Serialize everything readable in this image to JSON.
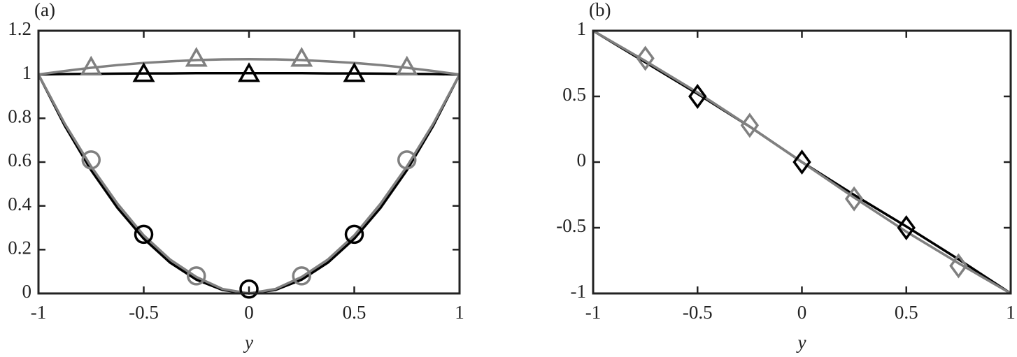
{
  "chart_data": [
    {
      "type": "line",
      "label": "(a)",
      "x_label": "y",
      "xlim": [
        -1,
        1
      ],
      "ylim": [
        0,
        1.2
      ],
      "xticks": [
        -1,
        -0.5,
        0,
        0.5,
        1
      ],
      "yticks": [
        0,
        0.2,
        0.4,
        0.6,
        0.8,
        1,
        1.2
      ],
      "series": [
        {
          "style": "line",
          "color": "#000000",
          "x": [
            -1,
            -0.875,
            -0.75,
            -0.625,
            -0.5,
            -0.375,
            -0.25,
            -0.125,
            0,
            0.125,
            0.25,
            0.375,
            0.5,
            0.625,
            0.75,
            0.875,
            1
          ],
          "values": [
            1,
            0.766,
            0.563,
            0.391,
            0.25,
            0.141,
            0.063,
            0.016,
            0,
            0.016,
            0.063,
            0.141,
            0.25,
            0.391,
            0.563,
            0.766,
            1
          ]
        },
        {
          "style": "line",
          "color": "#000000",
          "x": [
            -1,
            -0.875,
            -0.75,
            -0.625,
            -0.5,
            -0.375,
            -0.25,
            -0.125,
            0,
            0.125,
            0.25,
            0.375,
            0.5,
            0.625,
            0.75,
            0.875,
            1
          ],
          "values": [
            1,
            1.002,
            1.003,
            1.004,
            1.005,
            1.005,
            1.006,
            1.006,
            1.006,
            1.006,
            1.006,
            1.005,
            1.005,
            1.004,
            1.003,
            1.002,
            1
          ]
        },
        {
          "style": "line",
          "color": "#808080",
          "x": [
            -1,
            -0.875,
            -0.75,
            -0.625,
            -0.5,
            -0.375,
            -0.25,
            -0.125,
            0,
            0.125,
            0.25,
            0.375,
            0.5,
            0.625,
            0.75,
            0.875,
            1
          ],
          "values": [
            1,
            0.775,
            0.58,
            0.41,
            0.265,
            0.155,
            0.075,
            0.02,
            0,
            0.02,
            0.075,
            0.155,
            0.265,
            0.41,
            0.58,
            0.775,
            1
          ]
        },
        {
          "style": "line",
          "color": "#808080",
          "x": [
            -1,
            -0.875,
            -0.75,
            -0.625,
            -0.5,
            -0.375,
            -0.25,
            -0.125,
            0,
            0.125,
            0.25,
            0.375,
            0.5,
            0.625,
            0.75,
            0.875,
            1
          ],
          "values": [
            1,
            1.016,
            1.031,
            1.043,
            1.053,
            1.06,
            1.066,
            1.069,
            1.07,
            1.069,
            1.066,
            1.06,
            1.053,
            1.043,
            1.031,
            1.016,
            1
          ]
        },
        {
          "style": "markers",
          "marker": "triangle",
          "color": "#000000",
          "x": [
            -0.5,
            0,
            0.5
          ],
          "values": [
            1.0,
            1.0,
            1.0
          ]
        },
        {
          "style": "markers",
          "marker": "circle",
          "color": "#000000",
          "x": [
            -0.5,
            0,
            0.5
          ],
          "values": [
            0.27,
            0.02,
            0.27
          ]
        },
        {
          "style": "markers",
          "marker": "triangle",
          "color": "#808080",
          "x": [
            -0.75,
            -0.25,
            0.25,
            0.75
          ],
          "values": [
            1.03,
            1.07,
            1.07,
            1.03
          ]
        },
        {
          "style": "markers",
          "marker": "circle",
          "color": "#808080",
          "x": [
            -0.75,
            -0.25,
            0.25,
            0.75
          ],
          "values": [
            0.61,
            0.08,
            0.08,
            0.61
          ]
        }
      ]
    },
    {
      "type": "line",
      "label": "(b)",
      "x_label": "y",
      "xlim": [
        -1,
        1
      ],
      "ylim": [
        -1,
        1
      ],
      "xticks": [
        -1,
        -0.5,
        0,
        0.5,
        1
      ],
      "yticks": [
        -1,
        -0.5,
        0,
        0.5,
        1
      ],
      "series": [
        {
          "style": "line",
          "color": "#000000",
          "x": [
            -1,
            -0.75,
            -0.5,
            -0.25,
            0,
            0.25,
            0.5,
            0.75,
            1
          ],
          "values": [
            1,
            0.76,
            0.52,
            0.27,
            0,
            -0.25,
            -0.49,
            -0.74,
            -1
          ]
        },
        {
          "style": "line",
          "color": "#808080",
          "x": [
            -1,
            -0.75,
            -0.5,
            -0.25,
            0,
            0.25,
            0.5,
            0.75,
            1
          ],
          "values": [
            1,
            0.77,
            0.53,
            0.27,
            0,
            -0.27,
            -0.53,
            -0.77,
            -1
          ]
        },
        {
          "style": "markers",
          "marker": "diamond",
          "color": "#000000",
          "x": [
            -0.5,
            0,
            0.5
          ],
          "values": [
            0.5,
            0,
            -0.5
          ]
        },
        {
          "style": "markers",
          "marker": "diamond",
          "color": "#808080",
          "x": [
            -0.75,
            -0.25,
            0.25,
            0.75
          ],
          "values": [
            0.79,
            0.28,
            -0.28,
            -0.79
          ]
        }
      ]
    }
  ]
}
